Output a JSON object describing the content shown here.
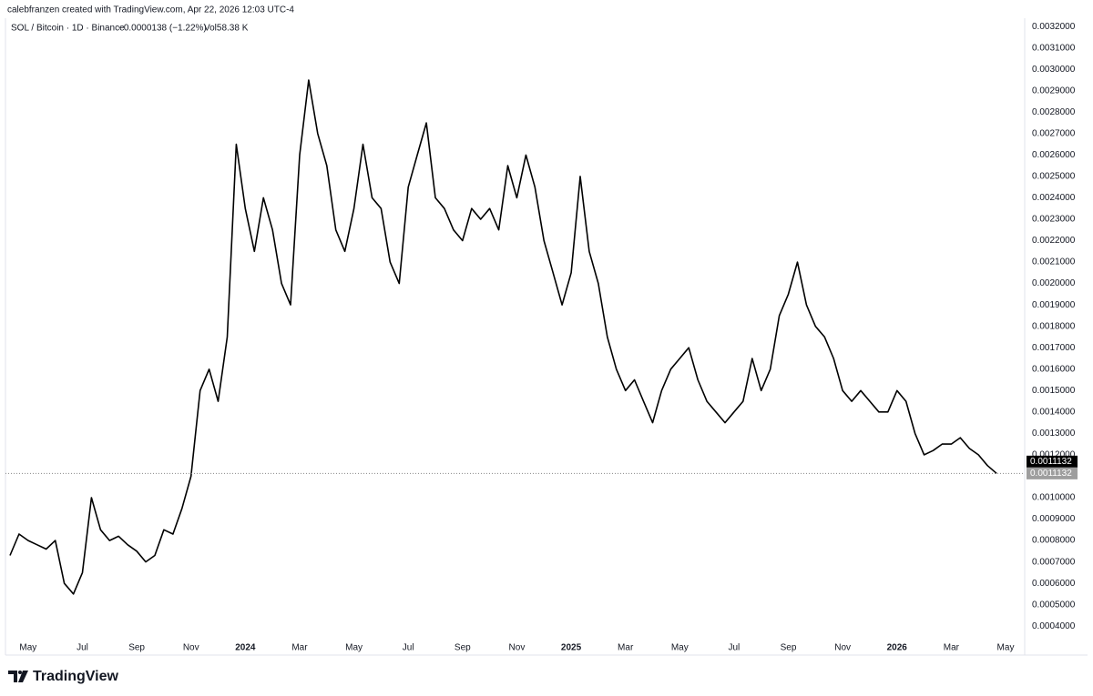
{
  "header": "calebfranzen created with TradingView.com, Apr 22, 2026 12:03 UTC-4",
  "footer": {
    "brand": "TradingView"
  },
  "chart_data": {
    "type": "line",
    "title": "SOL / Bitcoin · 1D · Binance",
    "change": "−0.0000138 (−1.22%)",
    "volume": "Vol58.38 K",
    "color": "#000000",
    "grid": false,
    "categories": [
      null,
      null,
      "May",
      null,
      null,
      null,
      null,
      null,
      "Jul",
      null,
      null,
      null,
      null,
      null,
      "Sep",
      null,
      null,
      null,
      null,
      null,
      "Nov",
      null,
      null,
      null,
      null,
      null,
      "2024",
      null,
      null,
      null,
      null,
      null,
      "Mar",
      null,
      null,
      null,
      null,
      null,
      "May",
      null,
      null,
      null,
      null,
      null,
      "Jul",
      null,
      null,
      null,
      null,
      null,
      "Sep",
      null,
      null,
      null,
      null,
      null,
      "Nov",
      null,
      null,
      null,
      null,
      null,
      "2025",
      null,
      null,
      null,
      null,
      null,
      "Mar",
      null,
      null,
      null,
      null,
      null,
      "May",
      null,
      null,
      null,
      null,
      null,
      "Jul",
      null,
      null,
      null,
      null,
      null,
      "Sep",
      null,
      null,
      null,
      null,
      null,
      "Nov",
      null,
      null,
      null,
      null,
      null,
      "2026",
      null,
      null,
      null,
      null,
      null,
      "Mar",
      null,
      null,
      null,
      null,
      null,
      "May"
    ],
    "values": [
      0.00073,
      0.00083,
      0.0008,
      0.00078,
      0.00076,
      0.0008,
      0.0006,
      0.00055,
      0.00065,
      0.001,
      0.00085,
      0.0008,
      0.00082,
      0.00078,
      0.00075,
      0.0007,
      0.00073,
      0.00085,
      0.00083,
      0.00095,
      0.0011,
      0.0015,
      0.0016,
      0.00145,
      0.00175,
      0.00265,
      0.00235,
      0.00215,
      0.0024,
      0.00225,
      0.002,
      0.0019,
      0.0026,
      0.00295,
      0.0027,
      0.00255,
      0.00225,
      0.00215,
      0.00235,
      0.00265,
      0.0024,
      0.00235,
      0.0021,
      0.002,
      0.00245,
      0.0026,
      0.00275,
      0.0024,
      0.00235,
      0.00225,
      0.0022,
      0.00235,
      0.0023,
      0.00235,
      0.00225,
      0.00255,
      0.0024,
      0.0026,
      0.00245,
      0.0022,
      0.00205,
      0.0019,
      0.00205,
      0.0025,
      0.00215,
      0.002,
      0.00175,
      0.0016,
      0.0015,
      0.00155,
      0.00145,
      0.00135,
      0.0015,
      0.0016,
      0.00165,
      0.0017,
      0.00155,
      0.00145,
      0.0014,
      0.00135,
      0.0014,
      0.00145,
      0.00165,
      0.0015,
      0.0016,
      0.00185,
      0.00195,
      0.0021,
      0.0019,
      0.0018,
      0.00175,
      0.00165,
      0.0015,
      0.00145,
      0.0015,
      0.00145,
      0.0014,
      0.0014,
      0.0015,
      0.00145,
      0.0013,
      0.0012,
      0.00122,
      0.00125,
      0.00125,
      0.00128,
      0.00123,
      0.0012,
      0.00115,
      0.0011132,
      null
    ],
    "ylim": [
      0.00035,
      0.00326
    ],
    "yticks": [
      {
        "value": 0.0004,
        "label": "0.0004000"
      },
      {
        "value": 0.0005,
        "label": "0.0005000"
      },
      {
        "value": 0.0006,
        "label": "0.0006000"
      },
      {
        "value": 0.0007,
        "label": "0.0007000"
      },
      {
        "value": 0.0008,
        "label": "0.0008000"
      },
      {
        "value": 0.0009,
        "label": "0.0009000"
      },
      {
        "value": 0.001,
        "label": "0.0010000"
      },
      {
        "value": 0.0012,
        "label": "0.0012000"
      },
      {
        "value": 0.0013,
        "label": "0.0013000"
      },
      {
        "value": 0.0014,
        "label": "0.0014000"
      },
      {
        "value": 0.0015,
        "label": "0.0015000"
      },
      {
        "value": 0.0016,
        "label": "0.0016000"
      },
      {
        "value": 0.0017,
        "label": "0.0017000"
      },
      {
        "value": 0.0018,
        "label": "0.0018000"
      },
      {
        "value": 0.0019,
        "label": "0.0019000"
      },
      {
        "value": 0.002,
        "label": "0.0020000"
      },
      {
        "value": 0.0021,
        "label": "0.0021000"
      },
      {
        "value": 0.0022,
        "label": "0.0022000"
      },
      {
        "value": 0.0023,
        "label": "0.0023000"
      },
      {
        "value": 0.0024,
        "label": "0.0024000"
      },
      {
        "value": 0.0025,
        "label": "0.0025000"
      },
      {
        "value": 0.0026,
        "label": "0.0026000"
      },
      {
        "value": 0.0027,
        "label": "0.0027000"
      },
      {
        "value": 0.0028,
        "label": "0.0028000"
      },
      {
        "value": 0.0029,
        "label": "0.0029000"
      },
      {
        "value": 0.003,
        "label": "0.0030000"
      },
      {
        "value": 0.0031,
        "label": "0.0031000"
      },
      {
        "value": 0.0032,
        "label": "0.0032000"
      }
    ],
    "price_labels": [
      {
        "value": 0.0011132,
        "label": "0.0011132",
        "color": "#000000"
      },
      {
        "value": 0.0011132,
        "label": "0.0011132",
        "color": "#9e9e9e"
      }
    ]
  }
}
